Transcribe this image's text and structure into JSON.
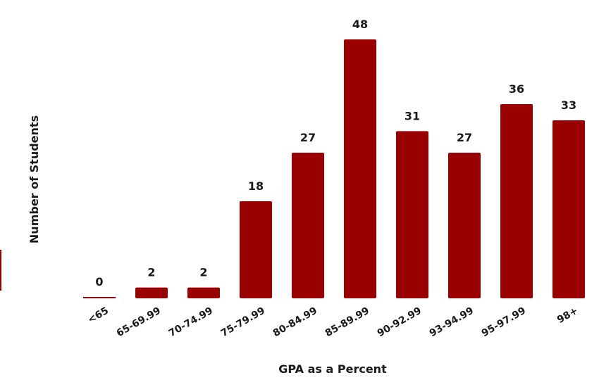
{
  "chart_data": {
    "type": "bar",
    "categories": [
      "<65",
      "65-69.99",
      "70-74.99",
      "75-79.99",
      "80-84.99",
      "85-89.99",
      "90-92.99",
      "93-94.99",
      "95-97.99",
      "98+"
    ],
    "values": [
      0,
      2,
      2,
      18,
      27,
      48,
      31,
      27,
      36,
      33
    ],
    "value_labels": [
      "0",
      "2",
      "2",
      "18",
      "27",
      "48",
      "31",
      "27",
      "36",
      "33"
    ],
    "title": "",
    "xlabel": "GPA as a Percent",
    "ylabel": "Number of Students",
    "ylim": [
      0,
      48
    ],
    "grid": false,
    "legend": "none",
    "bar_color": "#990000"
  }
}
